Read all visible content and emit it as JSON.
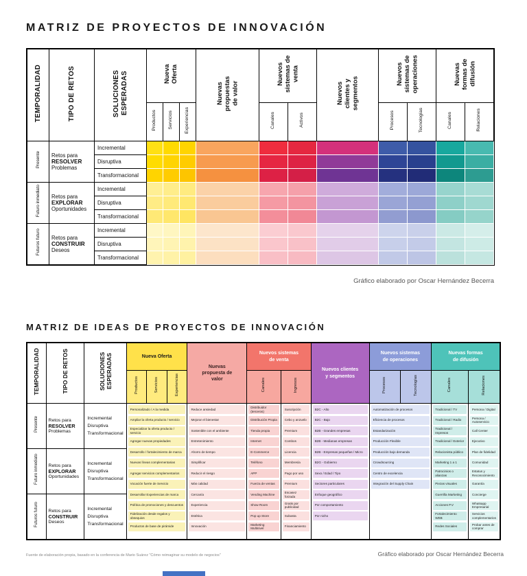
{
  "page": {
    "title1": "MATRIZ DE PROYECTOS DE INNOVACIÓN",
    "title2": "MATRIZ DE IDEAS DE PROYECTOS DE INNOVACIÓN",
    "credit": "Gráfico elaborado por Oscar Hernández Becerra",
    "source": "Fuente de  elaboración propia, basado en la conferencia de Mario Suárez \"Cómo reimaginar su modelo de negocios\""
  },
  "left_headers": [
    "TEMPORALIDAD",
    "TIPO DE RETOS",
    "SOLUCIONES ESPERADAS"
  ],
  "row_groups": [
    {
      "period": "Presente",
      "challenge": [
        "Retos para",
        "RESOLVER",
        "Problemas"
      ],
      "solutions": [
        "Incremental",
        "Disruptiva",
        "Transformacional"
      ]
    },
    {
      "period": "Futuro inmediato",
      "challenge": [
        "Retos para",
        "EXPLORAR",
        "Oportunidades"
      ],
      "solutions": [
        "Incremental",
        "Disruptiva",
        "Transformacional"
      ]
    },
    {
      "period": "Futuros futuro",
      "challenge": [
        "Retos para",
        "CONSTRUIR",
        "Deseos"
      ],
      "solutions": [
        "Incremental",
        "Disruptiva",
        "Transformacional"
      ]
    }
  ],
  "matrix1": {
    "groups": [
      {
        "title": "Nueva Oferta",
        "cols": [
          "Productos",
          "Servicios",
          "Experiencias"
        ]
      },
      {
        "title": "Nuevas propuestas de valor",
        "cols": []
      },
      {
        "title": "Nuevos sistemas de venta",
        "cols": [
          "Canales",
          "Activos"
        ]
      },
      {
        "title": "Nuevos clientes y segmentos",
        "cols": []
      },
      {
        "title": "Nuevos sistemas de operaciones",
        "cols": [
          "Procesos",
          "Tecnologías"
        ]
      },
      {
        "title": "Nuevas formas de difusión",
        "cols": [
          "Canales",
          "Relaciones"
        ]
      }
    ],
    "cell_colors": [
      [
        "#FFE014",
        "#FFDA00",
        "#FFD400",
        "#F9A55E",
        "#EF2D3E",
        "#E52840",
        "#D4317B",
        "#3E5CA9",
        "#35539F",
        "#18A89E",
        "#48BAB0"
      ],
      [
        "#FFDC00",
        "#FFD400",
        "#FFCC00",
        "#F79B4F",
        "#E62642",
        "#DE2344",
        "#903B98",
        "#2E4596",
        "#29408E",
        "#12998F",
        "#3BAEA3"
      ],
      [
        "#FFD400",
        "#FFCC00",
        "#FDC500",
        "#F59140",
        "#DD2145",
        "#D41F47",
        "#6F3494",
        "#25317F",
        "#212C77",
        "#0D867C",
        "#2D9C91"
      ],
      [
        "#FFEF94",
        "#FFED8A",
        "#FFEB80",
        "#FBD2A8",
        "#F7A6AE",
        "#F5A0AA",
        "#CFABDB",
        "#A2ADDB",
        "#9CA8D8",
        "#97D4CD",
        "#A8DCD5"
      ],
      [
        "#FFEC85",
        "#FFEA7B",
        "#FFE871",
        "#FACC9D",
        "#F59AA4",
        "#F394A0",
        "#C9A1D6",
        "#9AA5D6",
        "#94A0D3",
        "#8ED0C8",
        "#9FD8D0"
      ],
      [
        "#FFE976",
        "#FFE76C",
        "#FFE562",
        "#F9C692",
        "#F38E9A",
        "#F18896",
        "#C397D1",
        "#929DD1",
        "#8C98CE",
        "#85CCC3",
        "#96D4CB"
      ],
      [
        "#FFF7C6",
        "#FFF6BF",
        "#FFF5B8",
        "#FDE6CC",
        "#FBCDD2",
        "#FAC8CE",
        "#E5D2EB",
        "#CDD4EC",
        "#C9D0EA",
        "#CBE9E5",
        "#D5EEEA"
      ],
      [
        "#FFF5BA",
        "#FFF4B3",
        "#FFF3AC",
        "#FCE2C5",
        "#FAC6CC",
        "#F9C1C8",
        "#E1CCE8",
        "#C7CFEA",
        "#C3CBE8",
        "#C3E5E1",
        "#CDEBE6"
      ],
      [
        "#FFF3AE",
        "#FFF2A7",
        "#FFF1A0",
        "#FCDEBE",
        "#F9BFC6",
        "#F8BAC2",
        "#DDC6E5",
        "#C1C9E7",
        "#BDC5E5",
        "#BBE1DC",
        "#C5E7E2"
      ]
    ]
  },
  "matrix2": {
    "groups": [
      {
        "title": "Nueva Oferta",
        "cols": [
          "Productos",
          "Servicios",
          "Experiencias"
        ],
        "header_bg": "#FFE14A",
        "sub_bg": "#FFEB7E",
        "header_fg": "#1a1a1a"
      },
      {
        "title": "Nuevas propuesta de valor",
        "cols": [],
        "header_bg": "#F5A9A4",
        "header_fg": "#3a2222"
      },
      {
        "title": "Nuevos sistemas de venta",
        "cols": [
          "Canales",
          "Ingresos"
        ],
        "header_bg": "#F2756B",
        "sub_bg": "#F7A79F",
        "header_fg": "#ffffff"
      },
      {
        "title": "Nuevos clientes y segmentos",
        "cols": [],
        "header_bg": "#AC66C1",
        "header_fg": "#ffffff"
      },
      {
        "title": "Nuevos sistemas de operaciones",
        "cols": [
          "Procesos",
          "Tecnologías"
        ],
        "header_bg": "#8C9CD9",
        "sub_bg": "#BCC6EA",
        "header_fg": "#ffffff"
      },
      {
        "title": "Nuevas formas de difusión",
        "cols": [
          "Canales",
          "Relaciones"
        ],
        "header_bg": "#4EC3B9",
        "sub_bg": "#A6DFD9",
        "header_fg": "#ffffff"
      }
    ],
    "columns": [
      {
        "span": 3,
        "item_bg": "#FAF2B8",
        "items": [
          "Personalizado / A la medida",
          "Ampliar la oferta producto / servicio",
          "Especializar la oferta producto / servicio",
          "Agregar nuevas propiedades",
          "Desarrollo / fortalecimiento de marca",
          "Nuevas líneas complementarias",
          "Agregar servicios complementarios",
          "Vocación fuerte de Servicio",
          "Desarrollar Experiencias de marca",
          "Política de promociones y descuentos",
          "Fidelización desde regalos y obsequios",
          "Productos de base de pirámide"
        ]
      },
      {
        "span": 1,
        "item_bg": "#FBE4E2",
        "items": [
          "Reduce ansiedad",
          "Mejorar el bienestar",
          "Sostenible con el ambiente",
          "Entretenimiento",
          "Ahorro de tiempo",
          "Simplificar",
          "Reducir el riesgo",
          "Más calidad",
          "Cercanía",
          "Experiencia",
          "Estética",
          "Innovación"
        ]
      },
      {
        "span": 1,
        "item_bg": "#F9D3D2",
        "items": [
          "Distribuidor (terceros)",
          "Distribución Propia",
          "Tienda propia",
          "Internet",
          "E-Commerce",
          "Teléfono",
          "APP",
          "Fuerza de ventas",
          "Vending Machine",
          "Show Room",
          "Pop up Store",
          "Marketing Multinivel"
        ]
      },
      {
        "span": 1,
        "item_bg": "#FBE0DF",
        "items": [
          "Suscripción",
          "Cebo y anzuelo",
          "Premium",
          "Combos",
          "Licencia",
          "Membresía",
          "Pago por uso",
          "Premium",
          "Escasez forzada",
          "Gratis por publicidad",
          "Subasta",
          "Financiamiento"
        ]
      },
      {
        "span": 1,
        "item_bg": "#EAD6F0",
        "items": [
          "B2C - Alto",
          "B2C - Bajo",
          "B2B - Grandes empresas",
          "B2B - Medianas empresas",
          "B2B - Empresas pequeñas / Micro",
          "B2G - Gobierno",
          "Sexo / Edad / Tipo",
          "Sectores particulares",
          "Enfoque geográfico",
          "Por comportamiento",
          "Por nicho"
        ]
      },
      {
        "span": 2,
        "item_bg": "#DFE5F6",
        "items": [
          "Automatización de procesos",
          "Eficiencia de procesos",
          "Estandarización",
          "Producción Flexible",
          "Producción bajo demanda",
          "Crowdsourcing",
          "Centro de excelencia",
          "Integración del Supply Chain"
        ]
      },
      {
        "span": 1,
        "item_bg": "#CFEDE9",
        "items": [
          "Tradicional / TV",
          "Tradicional / Radio",
          "Tradicional / Impresos",
          "Tradicional / Exterior",
          "Relacionista público",
          "Marketing 1 a 1",
          "Patrocinios o alianzas",
          "Piezas visuales",
          "Guerrilla Marketing",
          "Acciones P.V",
          "Fortalecimiento WEB",
          "Redes Sociales"
        ]
      },
      {
        "span": 1,
        "item_bg": "#DFF4F1",
        "items": [
          "Persona / Digital",
          "Persona / Autoservicio",
          "Call Center",
          "Ejecutivo",
          "Plan de fidelidad",
          "Comunidad",
          "Estatus y Reconocimiento",
          "Garantía",
          "Concierge",
          "Whatsapp Empresarial",
          "Servicios complementarios",
          "Probar antes de comprar"
        ]
      }
    ]
  }
}
